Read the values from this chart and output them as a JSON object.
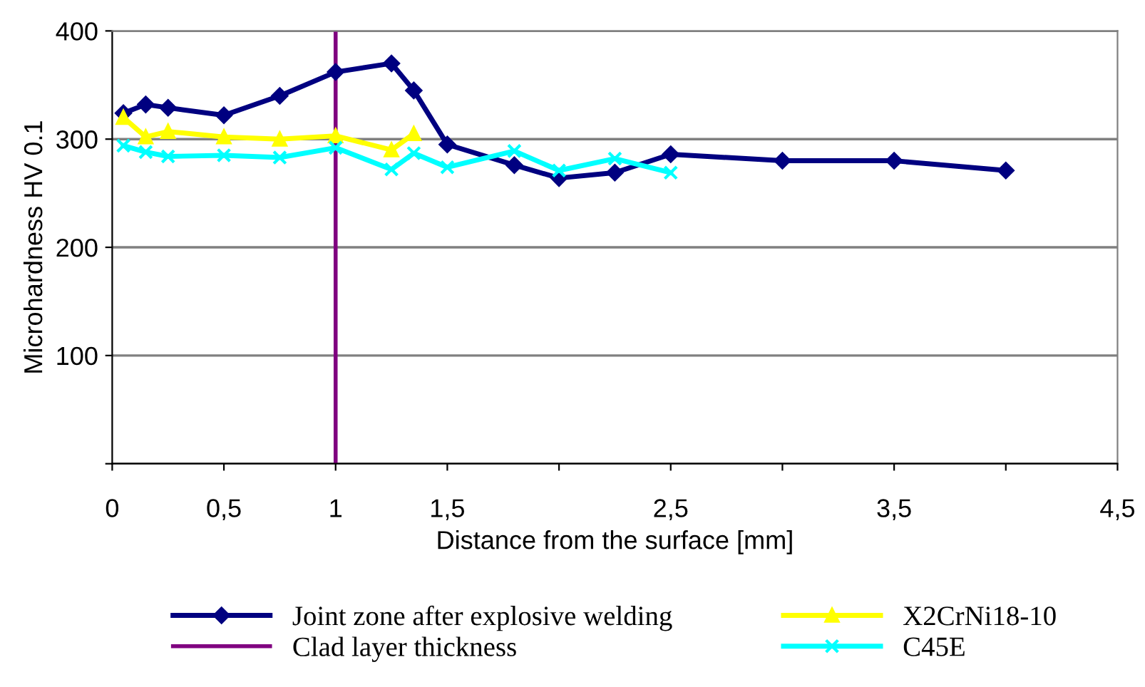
{
  "chart_data": {
    "type": "line",
    "xlabel": "Distance from the surface [mm]",
    "ylabel": "Microhardness HV 0.1",
    "xlim": [
      0,
      4.5
    ],
    "xticks": [
      0,
      {
        "value": 0.5,
        "label": "0,5"
      },
      1,
      {
        "value": 1.5,
        "label": "1,5"
      },
      {
        "value": 2,
        "label": null
      },
      {
        "value": 2.5,
        "label": "2,5"
      },
      {
        "value": 3,
        "label": null
      },
      {
        "value": 3.5,
        "label": "3,5"
      },
      {
        "value": 4,
        "label": null
      },
      {
        "value": 4.5,
        "label": "4,5"
      }
    ],
    "ylim": [
      0,
      400
    ],
    "yticks": [
      {
        "value": 0,
        "label": null
      },
      100,
      200,
      300,
      400
    ],
    "grid": "y",
    "legend": "bottom",
    "line_style": "solid",
    "series": [
      {
        "name": "Joint zone after explosive welding",
        "color": "#000080",
        "marker": "diamond",
        "x": [
          0.05,
          0.15,
          0.25,
          0.5,
          0.75,
          1.0,
          1.25,
          1.35,
          1.5,
          1.8,
          2.0,
          2.25,
          2.5,
          3.0,
          3.5,
          4.0
        ],
        "values": [
          324,
          332,
          329,
          322,
          340,
          362,
          370,
          345,
          295,
          276,
          264,
          269,
          286,
          280,
          280,
          271
        ]
      },
      {
        "name": "X2CrNi18-10",
        "color": "#ffff00",
        "marker": "triangle",
        "x": [
          0.05,
          0.15,
          0.25,
          0.5,
          0.75,
          1.0,
          1.25,
          1.35
        ],
        "values": [
          320,
          302,
          307,
          302,
          300,
          303,
          290,
          305
        ]
      },
      {
        "name": "C45E",
        "color": "#00ffff",
        "marker": "cross",
        "x": [
          0.05,
          0.15,
          0.25,
          0.5,
          0.75,
          1.0,
          1.25,
          1.35,
          1.5,
          1.8,
          2.0,
          2.25,
          2.5
        ],
        "values": [
          294,
          288,
          284,
          285,
          283,
          292,
          272,
          287,
          274,
          289,
          271,
          282,
          269
        ]
      }
    ],
    "ref_lines": [
      {
        "axis": "x",
        "value": 1,
        "label": "Clad layer thickness",
        "color": "#800080",
        "line_style": "solid"
      }
    ]
  }
}
